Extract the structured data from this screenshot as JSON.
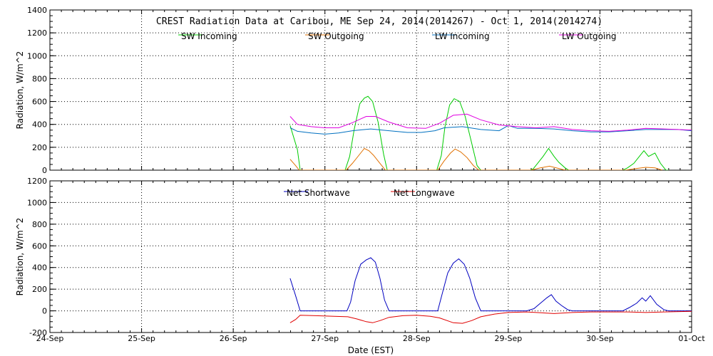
{
  "chart_data": [
    {
      "type": "line",
      "title": "CREST Radiation Data at Caribou, ME   Sep 24, 2014(2014267) - Oct  1, 2014(2014274)",
      "xlabel": "",
      "ylabel": "Radiation, W/m^2",
      "xlim": [
        "2014-09-24",
        "2014-10-01"
      ],
      "ylim": [
        0,
        1400
      ],
      "yticks": [
        0,
        200,
        400,
        600,
        800,
        1000,
        1200,
        1400
      ],
      "grid": true,
      "legend_position": "top",
      "series": [
        {
          "name": "SW Incoming",
          "color": "#00cc00",
          "points": [
            [
              2.62,
              390
            ],
            [
              2.7,
              180
            ],
            [
              2.73,
              0
            ],
            [
              3.22,
              0
            ],
            [
              3.27,
              120
            ],
            [
              3.32,
              360
            ],
            [
              3.38,
              580
            ],
            [
              3.43,
              630
            ],
            [
              3.47,
              645
            ],
            [
              3.52,
              600
            ],
            [
              3.58,
              420
            ],
            [
              3.64,
              140
            ],
            [
              3.68,
              0
            ],
            [
              4.22,
              0
            ],
            [
              4.27,
              130
            ],
            [
              4.31,
              380
            ],
            [
              4.36,
              570
            ],
            [
              4.41,
              625
            ],
            [
              4.47,
              600
            ],
            [
              4.53,
              470
            ],
            [
              4.6,
              240
            ],
            [
              4.66,
              40
            ],
            [
              4.7,
              0
            ],
            [
              5.24,
              0
            ],
            [
              5.27,
              10
            ],
            [
              5.32,
              60
            ],
            [
              5.38,
              120
            ],
            [
              5.44,
              190
            ],
            [
              5.5,
              120
            ],
            [
              5.55,
              70
            ],
            [
              5.62,
              20
            ],
            [
              5.66,
              0
            ],
            [
              6.25,
              0
            ],
            [
              6.3,
              20
            ],
            [
              6.37,
              60
            ],
            [
              6.43,
              120
            ],
            [
              6.48,
              170
            ],
            [
              6.53,
              120
            ],
            [
              6.6,
              150
            ],
            [
              6.66,
              60
            ],
            [
              6.72,
              0
            ],
            [
              6.75,
              0
            ]
          ]
        },
        {
          "name": "SW Outgoing",
          "color": "#e07000",
          "points": [
            [
              2.62,
              95
            ],
            [
              2.68,
              40
            ],
            [
              2.72,
              0
            ],
            [
              3.23,
              0
            ],
            [
              3.3,
              60
            ],
            [
              3.38,
              140
            ],
            [
              3.43,
              190
            ],
            [
              3.48,
              170
            ],
            [
              3.53,
              130
            ],
            [
              3.6,
              60
            ],
            [
              3.66,
              0
            ],
            [
              4.23,
              0
            ],
            [
              4.3,
              80
            ],
            [
              4.37,
              150
            ],
            [
              4.42,
              185
            ],
            [
              4.48,
              160
            ],
            [
              4.55,
              110
            ],
            [
              4.62,
              40
            ],
            [
              4.68,
              0
            ],
            [
              5.25,
              0
            ],
            [
              5.35,
              20
            ],
            [
              5.45,
              35
            ],
            [
              5.55,
              15
            ],
            [
              5.62,
              0
            ],
            [
              6.28,
              0
            ],
            [
              6.4,
              15
            ],
            [
              6.5,
              25
            ],
            [
              6.6,
              20
            ],
            [
              6.68,
              0
            ]
          ]
        },
        {
          "name": "LW Incoming",
          "color": "#0070c0",
          "points": [
            [
              2.62,
              370
            ],
            [
              2.7,
              340
            ],
            [
              2.85,
              325
            ],
            [
              3.0,
              315
            ],
            [
              3.15,
              325
            ],
            [
              3.3,
              345
            ],
            [
              3.5,
              360
            ],
            [
              3.7,
              345
            ],
            [
              3.9,
              330
            ],
            [
              4.05,
              330
            ],
            [
              4.2,
              345
            ],
            [
              4.3,
              370
            ],
            [
              4.5,
              380
            ],
            [
              4.7,
              355
            ],
            [
              4.9,
              345
            ],
            [
              5.0,
              390
            ],
            [
              5.1,
              365
            ],
            [
              5.3,
              365
            ],
            [
              5.5,
              360
            ],
            [
              5.7,
              345
            ],
            [
              5.9,
              335
            ],
            [
              6.1,
              335
            ],
            [
              6.3,
              345
            ],
            [
              6.5,
              355
            ],
            [
              6.7,
              355
            ],
            [
              6.85,
              355
            ],
            [
              7.0,
              345
            ]
          ]
        },
        {
          "name": "LW Outgoing",
          "color": "#e000e0",
          "points": [
            [
              2.62,
              470
            ],
            [
              2.7,
              400
            ],
            [
              2.85,
              380
            ],
            [
              3.0,
              370
            ],
            [
              3.15,
              370
            ],
            [
              3.3,
              415
            ],
            [
              3.45,
              470
            ],
            [
              3.55,
              470
            ],
            [
              3.7,
              420
            ],
            [
              3.9,
              370
            ],
            [
              4.1,
              365
            ],
            [
              4.25,
              410
            ],
            [
              4.4,
              480
            ],
            [
              4.55,
              490
            ],
            [
              4.7,
              440
            ],
            [
              4.9,
              395
            ],
            [
              5.1,
              380
            ],
            [
              5.3,
              370
            ],
            [
              5.5,
              380
            ],
            [
              5.7,
              355
            ],
            [
              5.9,
              345
            ],
            [
              6.1,
              340
            ],
            [
              6.3,
              350
            ],
            [
              6.5,
              365
            ],
            [
              6.7,
              360
            ],
            [
              6.85,
              355
            ],
            [
              7.0,
              350
            ]
          ]
        }
      ]
    },
    {
      "type": "line",
      "title": "",
      "xlabel": "Date (EST)",
      "ylabel": "Radiation, W/m^2",
      "xlim": [
        "2014-09-24",
        "2014-10-01"
      ],
      "ylim": [
        -200,
        1200
      ],
      "yticks": [
        -200,
        0,
        200,
        400,
        600,
        800,
        1000,
        1200
      ],
      "xticks": [
        "24-Sep",
        "25-Sep",
        "26-Sep",
        "27-Sep",
        "28-Sep",
        "29-Sep",
        "30-Sep",
        "01-Oct"
      ],
      "grid": true,
      "legend_position": "top",
      "series": [
        {
          "name": "Net Shortwave",
          "color": "#0000c0",
          "points": [
            [
              2.62,
              300
            ],
            [
              2.68,
              140
            ],
            [
              2.73,
              0
            ],
            [
              3.24,
              0
            ],
            [
              3.28,
              80
            ],
            [
              3.33,
              280
            ],
            [
              3.39,
              430
            ],
            [
              3.45,
              470
            ],
            [
              3.5,
              490
            ],
            [
              3.55,
              450
            ],
            [
              3.6,
              300
            ],
            [
              3.65,
              100
            ],
            [
              3.7,
              0
            ],
            [
              4.23,
              0
            ],
            [
              4.28,
              160
            ],
            [
              4.34,
              350
            ],
            [
              4.4,
              440
            ],
            [
              4.46,
              480
            ],
            [
              4.52,
              430
            ],
            [
              4.58,
              300
            ],
            [
              4.64,
              120
            ],
            [
              4.7,
              0
            ],
            [
              5.2,
              0
            ],
            [
              5.28,
              20
            ],
            [
              5.35,
              70
            ],
            [
              5.42,
              120
            ],
            [
              5.47,
              150
            ],
            [
              5.52,
              90
            ],
            [
              5.58,
              50
            ],
            [
              5.65,
              10
            ],
            [
              5.7,
              0
            ],
            [
              6.25,
              0
            ],
            [
              6.32,
              30
            ],
            [
              6.4,
              70
            ],
            [
              6.46,
              120
            ],
            [
              6.5,
              90
            ],
            [
              6.55,
              140
            ],
            [
              6.62,
              60
            ],
            [
              6.7,
              10
            ],
            [
              6.75,
              0
            ],
            [
              7.0,
              0
            ]
          ]
        },
        {
          "name": "Net Longwave",
          "color": "#e00000",
          "points": [
            [
              2.62,
              -110
            ],
            [
              2.68,
              -80
            ],
            [
              2.73,
              -40
            ],
            [
              2.9,
              -45
            ],
            [
              3.1,
              -50
            ],
            [
              3.25,
              -55
            ],
            [
              3.35,
              -75
            ],
            [
              3.45,
              -100
            ],
            [
              3.52,
              -110
            ],
            [
              3.6,
              -90
            ],
            [
              3.7,
              -60
            ],
            [
              3.85,
              -45
            ],
            [
              4.0,
              -40
            ],
            [
              4.15,
              -50
            ],
            [
              4.25,
              -65
            ],
            [
              4.4,
              -110
            ],
            [
              4.5,
              -115
            ],
            [
              4.6,
              -90
            ],
            [
              4.7,
              -55
            ],
            [
              4.85,
              -30
            ],
            [
              5.0,
              -15
            ],
            [
              5.2,
              -10
            ],
            [
              5.4,
              -20
            ],
            [
              5.5,
              -25
            ],
            [
              5.7,
              -15
            ],
            [
              5.9,
              -10
            ],
            [
              6.1,
              -10
            ],
            [
              6.3,
              -10
            ],
            [
              6.5,
              -15
            ],
            [
              6.7,
              -10
            ],
            [
              7.0,
              -5
            ]
          ]
        }
      ]
    }
  ]
}
